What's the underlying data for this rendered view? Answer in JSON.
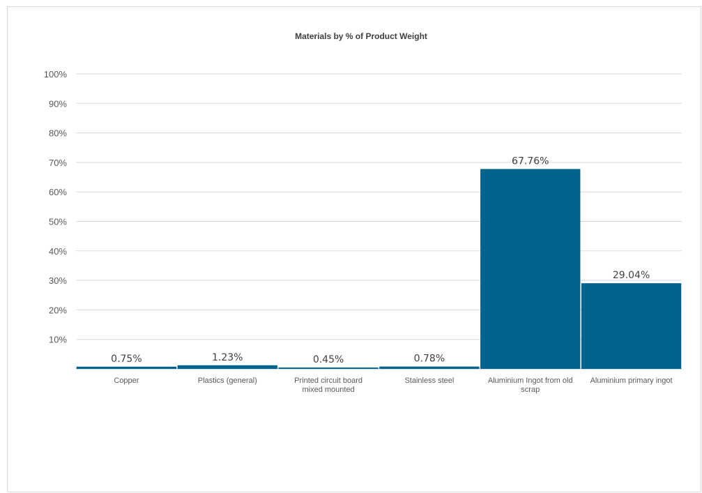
{
  "chart_data": {
    "type": "bar",
    "title": "Materials by % of Product Weight",
    "xlabel": "",
    "ylabel": "",
    "ylim": [
      0,
      100
    ],
    "yticks": [
      "10%",
      "20%",
      "30%",
      "40%",
      "50%",
      "60%",
      "70%",
      "80%",
      "90%",
      "100%"
    ],
    "categories": [
      [
        "Copper"
      ],
      [
        "Plastics (general)"
      ],
      [
        "Printed circuit board",
        "mixed mounted"
      ],
      [
        "Stainless steel"
      ],
      [
        "Aluminium Ingot from old",
        "scrap"
      ],
      [
        "Aluminium primary ingot"
      ]
    ],
    "values": [
      0.75,
      1.23,
      0.45,
      0.78,
      67.76,
      29.04
    ],
    "data_labels": [
      "0.75%",
      "1.23%",
      "0.45%",
      "0.78%",
      "67.76%",
      "29.04%"
    ],
    "grid": true,
    "legend": "none",
    "colors": {
      "bar": "#00648C"
    }
  }
}
